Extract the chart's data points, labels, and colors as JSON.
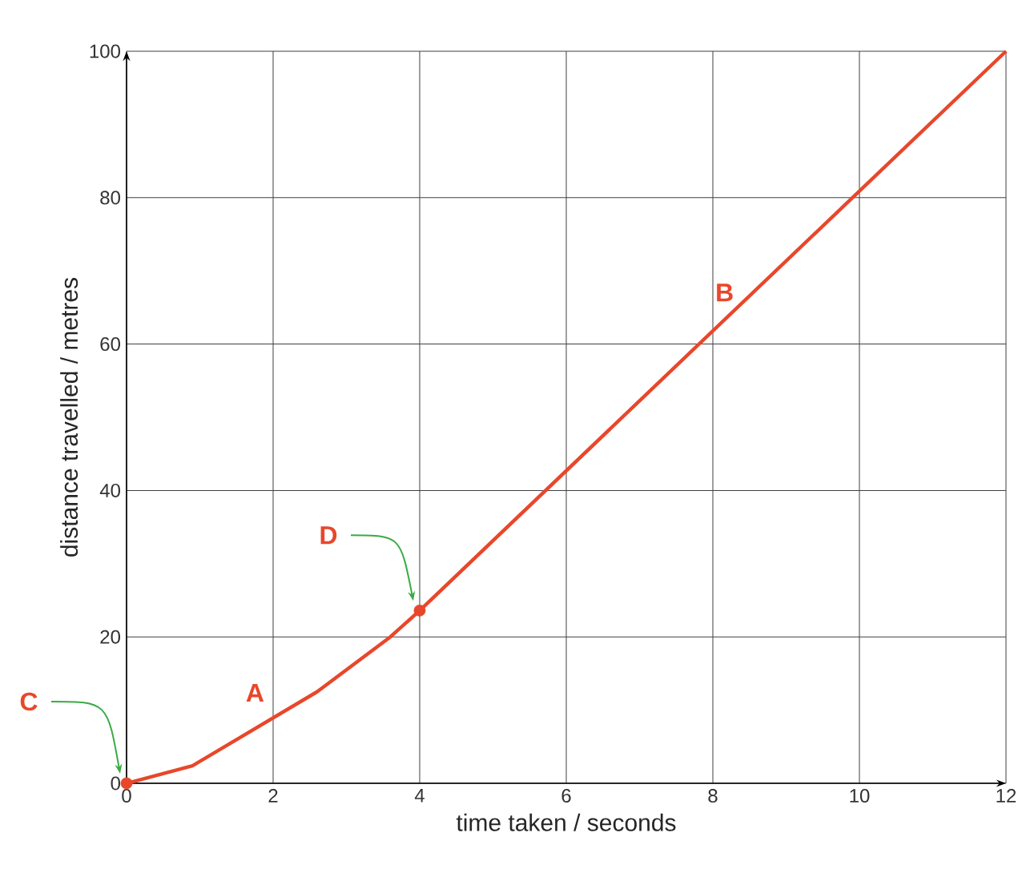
{
  "chart_data": {
    "type": "line",
    "xlabel": "time taken / seconds",
    "ylabel": "distance travelled / metres",
    "xlim": [
      0,
      12
    ],
    "ylim": [
      0,
      100
    ],
    "xticks": [
      0,
      2,
      4,
      6,
      8,
      10,
      12
    ],
    "yticks": [
      0,
      20,
      40,
      60,
      80,
      100
    ],
    "grid": true,
    "series": [
      {
        "color": "#e8472b",
        "marker": "none",
        "x": [
          0,
          0.9,
          2.6,
          3.6,
          4,
          12
        ],
        "values": [
          0,
          2.4,
          12.5,
          20,
          23.6,
          100
        ]
      },
      {
        "type": "scatter",
        "color": "#e8472b",
        "marker": "circle",
        "x": [
          0,
          4
        ],
        "values": [
          0,
          23.6
        ]
      }
    ],
    "annotations": [
      {
        "text": "A",
        "x": 2,
        "y": 9.5
      },
      {
        "text": "B",
        "x": 8,
        "y": 62
      },
      "C",
      "D"
    ]
  }
}
